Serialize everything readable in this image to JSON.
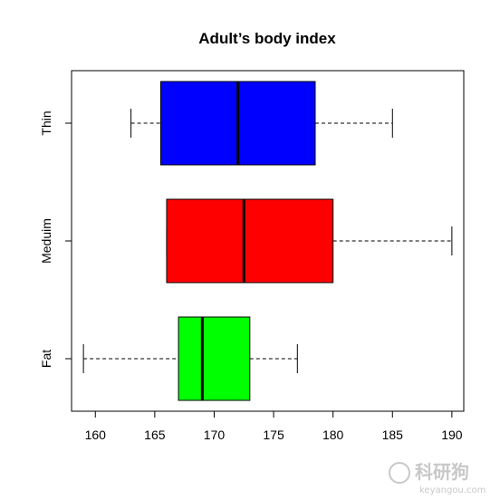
{
  "chart_data": {
    "type": "boxplot",
    "orientation": "horizontal",
    "title": "Adult’s body index",
    "xlabel": "",
    "ylabel": "",
    "xlim": [
      158,
      191
    ],
    "x_ticks": [
      160,
      165,
      170,
      175,
      180,
      185,
      190
    ],
    "x_tick_labels": [
      "160",
      "165",
      "170",
      "175",
      "180",
      "185",
      "190"
    ],
    "categories": [
      "Fat",
      "Meduim",
      "Thin"
    ],
    "series": [
      {
        "category": "Fat",
        "whisker_low": 159,
        "q1": 167,
        "median": 169,
        "q3": 173,
        "whisker_high": 177,
        "color": "#00ff00"
      },
      {
        "category": "Meduim",
        "whisker_low": 166,
        "q1": 166,
        "median": 172.5,
        "q3": 180,
        "whisker_high": 190,
        "color": "#ff0000"
      },
      {
        "category": "Thin",
        "whisker_low": 163,
        "q1": 165.5,
        "median": 172,
        "q3": 178.5,
        "whisker_high": 185,
        "color": "#0000ff"
      }
    ],
    "grid": false
  },
  "watermark": {
    "main": "科研狗",
    "sub": "keyangou.com"
  }
}
